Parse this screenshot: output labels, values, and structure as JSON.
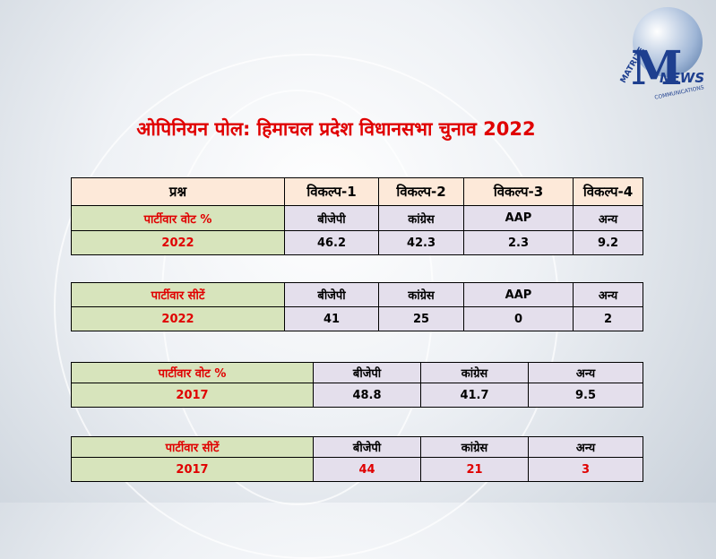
{
  "title": "ओपिनियन पोल: हिमाचल प्रदेश विधानसभा चुनाव 2022",
  "logo": {
    "brand": "MATRIZE",
    "sub": "NEWS",
    "tagline": "COMMUNICATIONS"
  },
  "tables": [
    {
      "rows": [
        [
          "प्रश्न",
          "विकल्प-1",
          "विकल्प-2",
          "विकल्प-3",
          "विकल्प-4"
        ],
        [
          "पार्टीवार वोट %",
          "बीजेपी",
          "कांग्रेस",
          "AAP",
          "अन्य"
        ],
        [
          "2022",
          46.2,
          42.3,
          2.3,
          9.2
        ]
      ]
    },
    {
      "rows": [
        [
          "पार्टीवार सीटें",
          "बीजेपी",
          "कांग्रेस",
          "AAP",
          "अन्य"
        ],
        [
          "2022",
          41,
          25,
          0,
          2
        ]
      ]
    },
    {
      "rows": [
        [
          "पार्टीवार वोट %",
          "बीजेपी",
          "कांग्रेस",
          "अन्य"
        ],
        [
          "2017",
          48.8,
          41.7,
          9.5
        ]
      ]
    },
    {
      "rows": [
        [
          "पार्टीवार सीटें",
          "बीजेपी",
          "कांग्रेस",
          "अन्य"
        ],
        [
          "2017",
          44,
          21,
          3
        ]
      ]
    }
  ]
}
